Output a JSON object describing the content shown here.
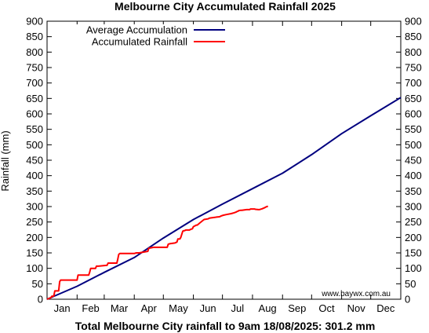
{
  "chart_data": {
    "type": "line",
    "title": "Melbourne City Accumulated Rainfall 2025",
    "xlabel": "Total Melbourne City rainfall to 9am 18/08/2025: 301.2 mm",
    "ylabel": "Rainfall (mm)",
    "categories": [
      "Jan",
      "Feb",
      "Mar",
      "Apr",
      "May",
      "Jun",
      "Jul",
      "Aug",
      "Sep",
      "Oct",
      "Nov",
      "Dec"
    ],
    "xlim": [
      0,
      365
    ],
    "ylim": [
      0,
      900
    ],
    "yticks": [
      0,
      50,
      100,
      150,
      200,
      250,
      300,
      350,
      400,
      450,
      500,
      550,
      600,
      650,
      700,
      750,
      800,
      850,
      900
    ],
    "grid": false,
    "legend_position": "top-left",
    "credit": "www.baywx.com.au",
    "colors": {
      "average": "#00007f",
      "accumulated": "#ff0000"
    },
    "series": [
      {
        "name": "Average Accumulation",
        "x": [
          0,
          31,
          59,
          90,
          120,
          151,
          181,
          212,
          243,
          273,
          304,
          334,
          365
        ],
        "y": [
          0,
          42,
          87,
          135,
          198,
          258,
          308,
          358,
          408,
          468,
          536,
          594,
          653
        ]
      },
      {
        "name": "Accumulated Rainfall",
        "x": [
          0,
          4,
          5,
          7,
          8,
          9,
          12,
          13,
          14,
          22,
          24,
          31,
          32,
          43,
          44,
          45,
          50,
          51,
          53,
          62,
          63,
          72,
          73,
          74,
          75,
          89,
          90,
          92,
          95,
          104,
          105,
          110,
          111,
          124,
          125,
          127,
          132,
          134,
          135,
          137,
          138,
          140,
          141,
          142,
          143,
          147,
          148,
          150,
          151,
          154,
          155,
          158,
          162,
          166,
          168,
          173,
          175,
          178,
          180,
          182,
          185,
          190,
          193,
          195,
          196,
          197,
          198,
          200,
          201,
          206,
          207,
          209,
          210,
          214,
          215,
          218,
          219,
          222,
          225,
          226,
          227,
          228
        ],
        "y": [
          0,
          5,
          10,
          10,
          27,
          27,
          27,
          57,
          62,
          62,
          62,
          62,
          78,
          78,
          88,
          100,
          100,
          107,
          107,
          110,
          117,
          117,
          130,
          145,
          148,
          148,
          148,
          150,
          150,
          155,
          165,
          168,
          168,
          168,
          178,
          180,
          182,
          185,
          195,
          195,
          200,
          220,
          222,
          222,
          224,
          224,
          226,
          228,
          235,
          240,
          240,
          248,
          258,
          260,
          263,
          265,
          266,
          267,
          270,
          272,
          274,
          277,
          280,
          282,
          284,
          285,
          287,
          288,
          288,
          290,
          290,
          290,
          292,
          292,
          291,
          290,
          290,
          293,
          297,
          299,
          300,
          301.2
        ]
      }
    ]
  }
}
